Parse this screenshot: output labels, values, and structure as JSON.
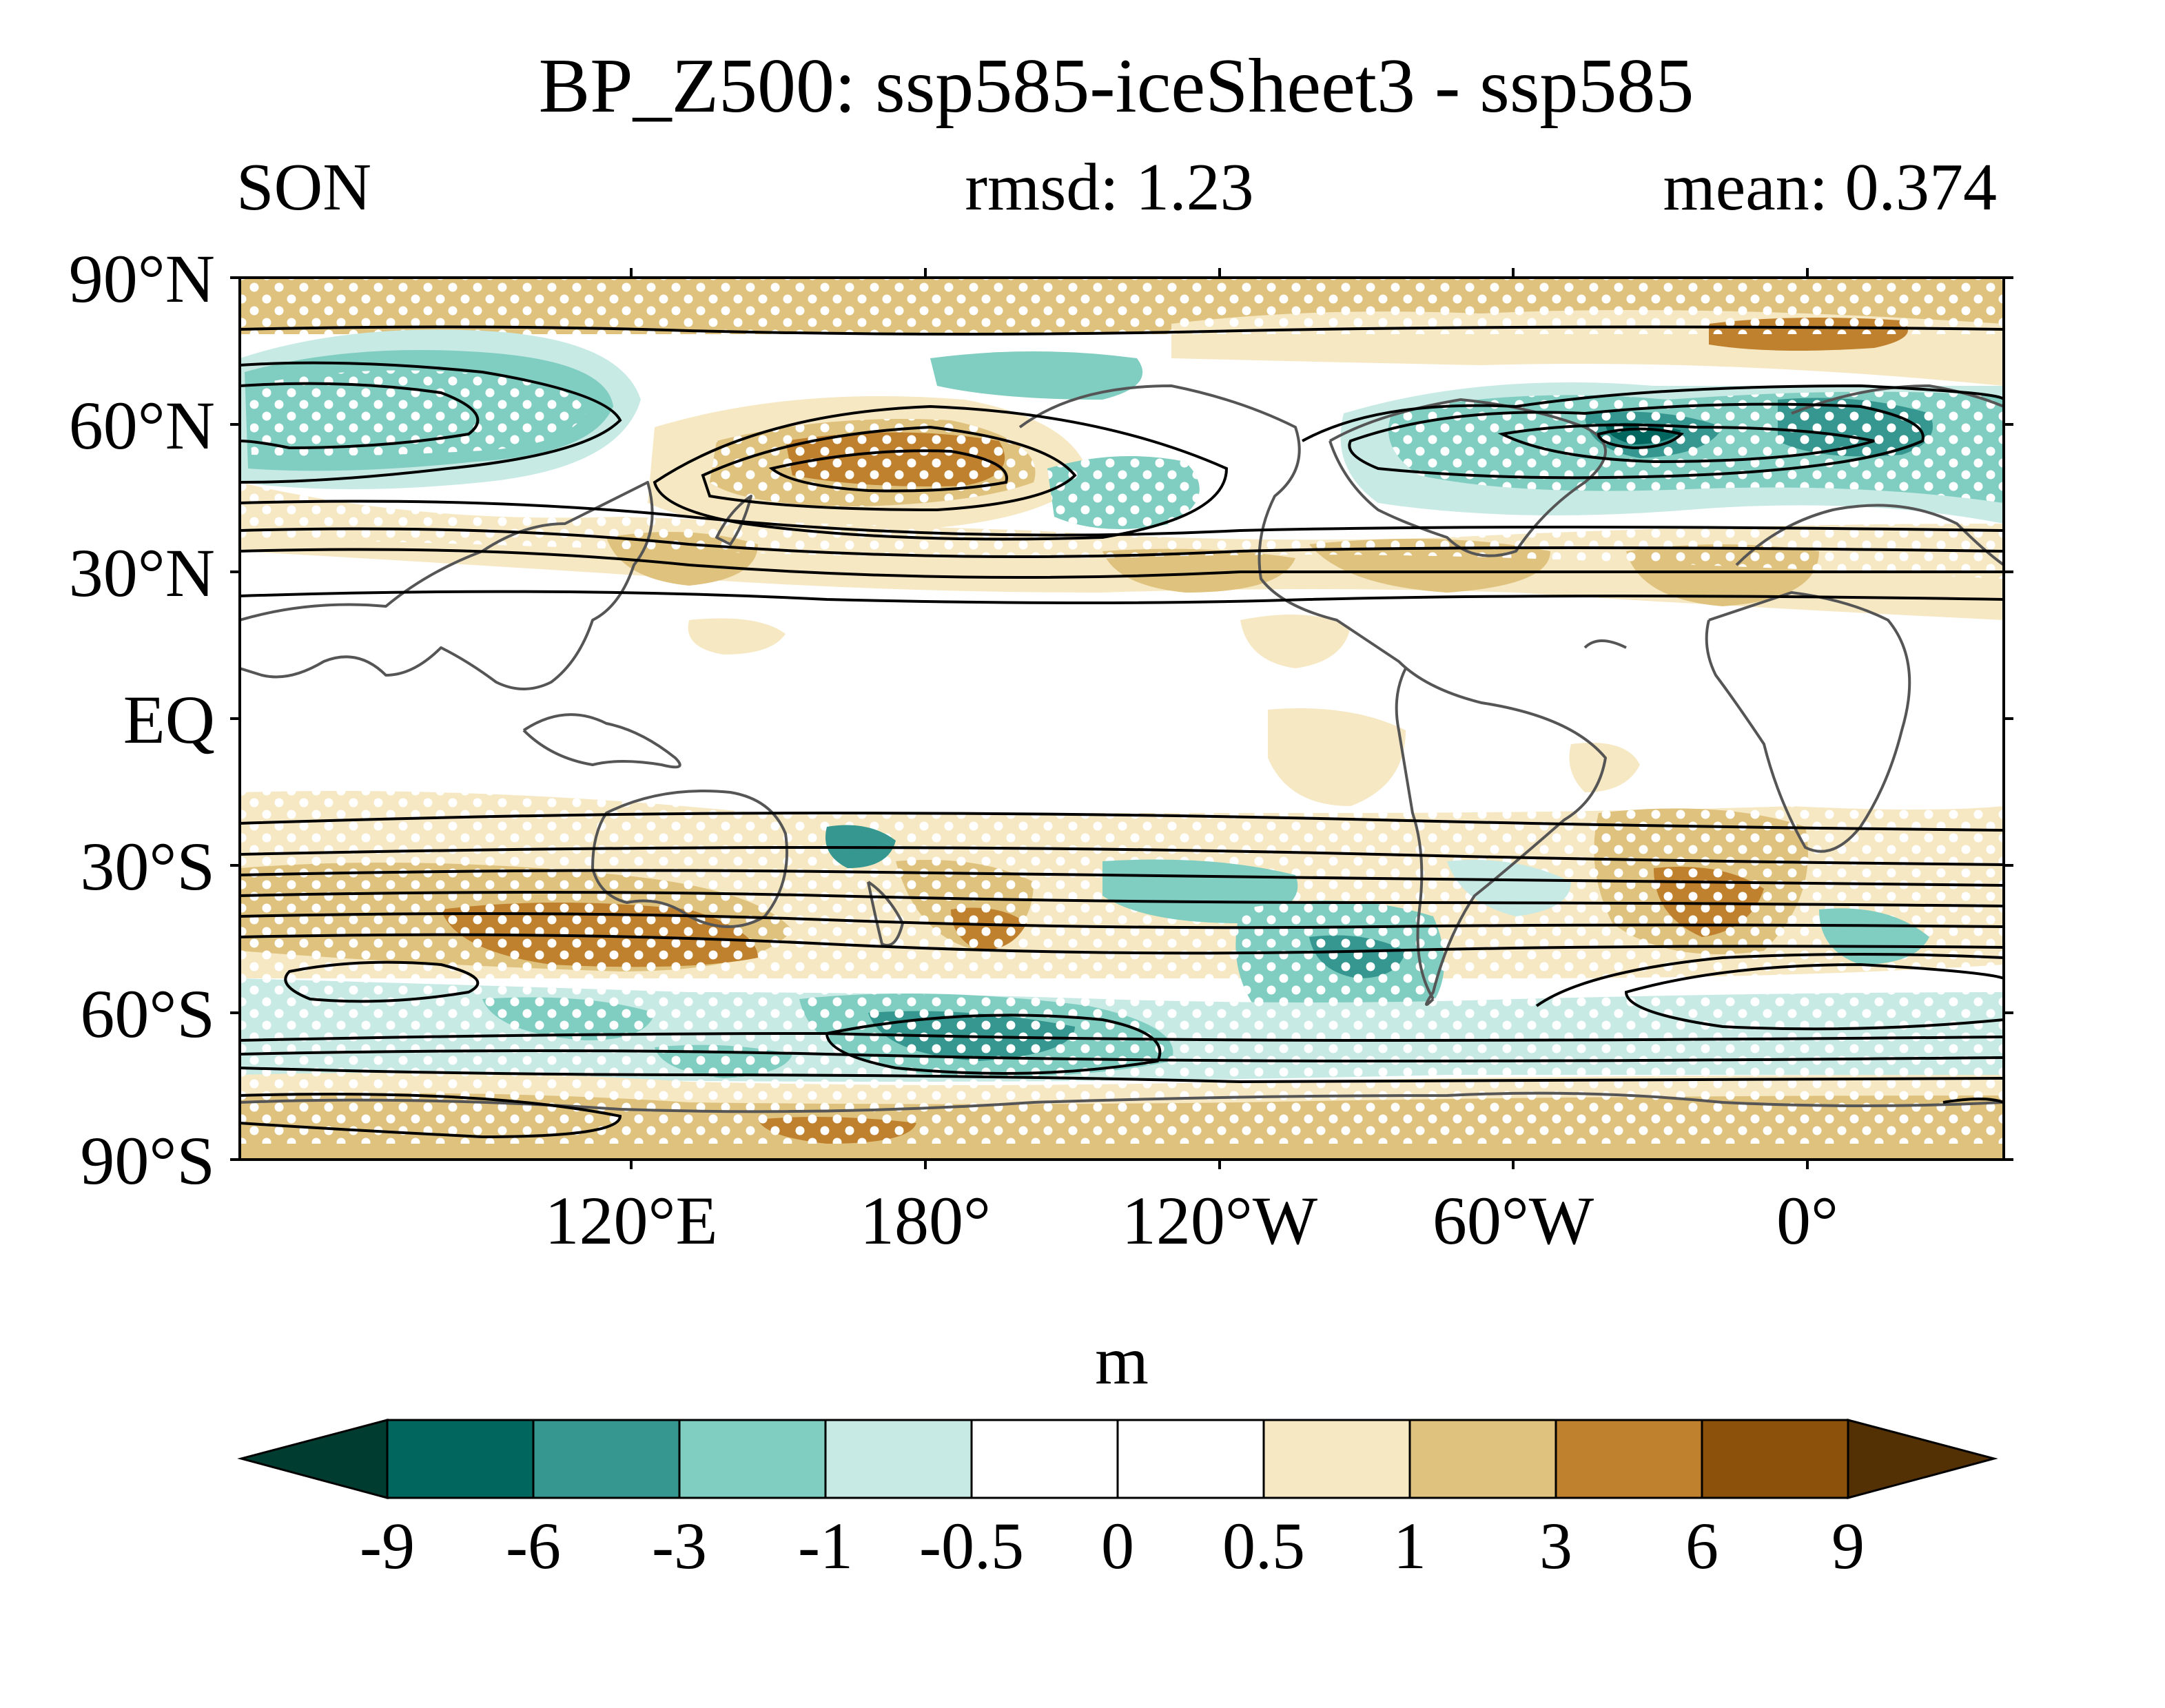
{
  "title": "BP_Z500: ssp585-iceSheet3 - ssp585",
  "subtitle": {
    "season": "SON",
    "rmsd": "rmsd: 1.23",
    "mean": "mean: 0.374"
  },
  "axes": {
    "lat_labels": [
      "90°N",
      "60°N",
      "30°N",
      "EQ",
      "30°S",
      "60°S",
      "90°S"
    ],
    "lon_labels": [
      "120°E",
      "180°",
      "120°W",
      "60°W",
      "0°"
    ]
  },
  "colorbar": {
    "unit": "m",
    "levels": [
      "-9",
      "-6",
      "-3",
      "-1",
      "-0.5",
      "0",
      "0.5",
      "1",
      "3",
      "6",
      "9"
    ],
    "colors": [
      "#003c30",
      "#01665e",
      "#35978f",
      "#80cdc1",
      "#c7eae5",
      "#ffffff",
      "#ffffff",
      "#f6e8c3",
      "#dfc27d",
      "#bf812d",
      "#8c510a",
      "#543005"
    ]
  },
  "colors": {
    "coastline": "#555555",
    "contour": "#000000",
    "stipple": "#ffffff"
  }
}
